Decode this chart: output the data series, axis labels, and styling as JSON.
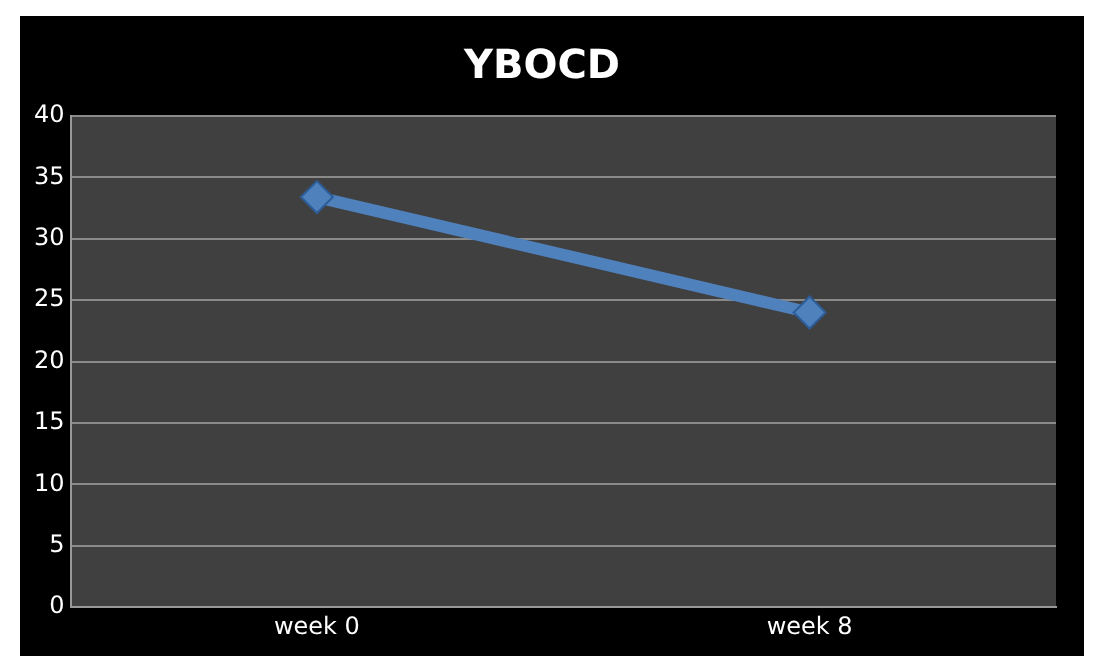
{
  "chart_data": {
    "type": "line",
    "title": "YBOCD",
    "categories": [
      "week 0",
      "week 8"
    ],
    "series": [
      {
        "color": "#4f81bd",
        "values": [
          33.4,
          24
        ]
      }
    ],
    "ylim": [
      0,
      40
    ],
    "yticks": [
      0,
      5,
      10,
      15,
      20,
      25,
      30,
      35,
      40
    ],
    "grid": "y",
    "legend": false,
    "marker": "diamond",
    "line_style": "solid"
  }
}
